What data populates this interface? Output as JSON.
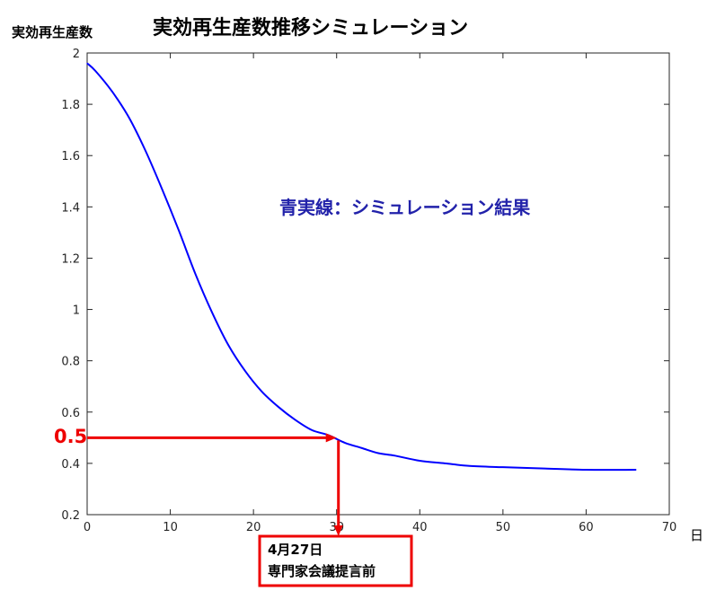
{
  "chart_data": {
    "type": "line",
    "title": "実効再生産数推移シミュレーション",
    "ylabel": "実効再生産数",
    "xlabel": "日",
    "xlim": [
      0,
      70
    ],
    "ylim": [
      0.2,
      2
    ],
    "xticks": [
      0,
      10,
      20,
      30,
      40,
      50,
      60,
      70
    ],
    "yticks": [
      0.2,
      0.4,
      0.6,
      0.8,
      1,
      1.2,
      1.4,
      1.6,
      1.8,
      2
    ],
    "grid": false,
    "series": [
      {
        "color": "#0000ff",
        "x": [
          0,
          1,
          3,
          5,
          7,
          9,
          11,
          13,
          15,
          17,
          19,
          21,
          23,
          25,
          27,
          29,
          31,
          33,
          35,
          37,
          40,
          43,
          46,
          50,
          55,
          60,
          66
        ],
        "y": [
          1.96,
          1.93,
          1.85,
          1.75,
          1.62,
          1.47,
          1.31,
          1.14,
          0.99,
          0.86,
          0.76,
          0.68,
          0.62,
          0.57,
          0.53,
          0.51,
          0.48,
          0.46,
          0.44,
          0.43,
          0.41,
          0.4,
          0.39,
          0.385,
          0.38,
          0.375,
          0.375
        ]
      }
    ],
    "annotations": {
      "legend_text": "青実線：シミュレーション結果",
      "legend_color": "#2222aa",
      "marker_value_label": "0.5",
      "marker_value": 0.5,
      "marker_day": 30,
      "marker_color": "#ee0000",
      "note_lines": [
        "4月27日",
        "専門家会議提言前"
      ]
    }
  }
}
